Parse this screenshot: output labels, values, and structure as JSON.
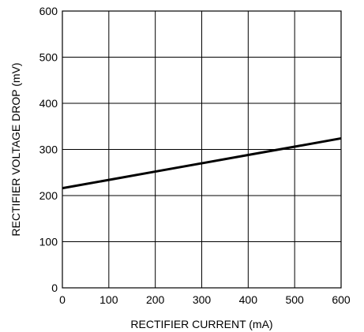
{
  "chart_data": {
    "type": "line",
    "title": "",
    "xlabel": "RECTIFIER CURRENT (mA)",
    "ylabel": "RECTIFIER VOLTAGE DROP (mV)",
    "xlim": [
      0,
      600
    ],
    "ylim": [
      0,
      600
    ],
    "xticks": [
      0,
      100,
      200,
      300,
      400,
      500,
      600
    ],
    "yticks": [
      0,
      100,
      200,
      300,
      400,
      500,
      600
    ],
    "grid": true,
    "series": [
      {
        "x": [
          0,
          100,
          200,
          300,
          400,
          500,
          600
        ],
        "y": [
          216,
          234,
          252,
          270,
          288,
          306,
          324
        ]
      }
    ]
  },
  "colors": {
    "line": "#000000",
    "grid": "#000000",
    "background": "#ffffff"
  }
}
